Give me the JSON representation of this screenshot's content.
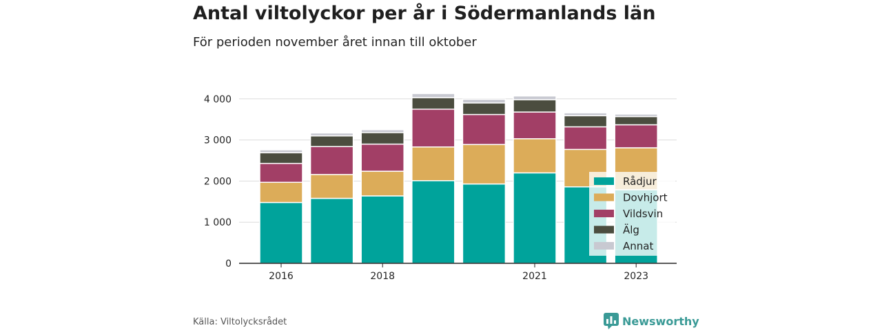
{
  "title": "Antal viltolyckor per år i Södermanlands län",
  "subtitle": "För perioden november året innan till oktober",
  "source": "Källa: Viltolycksrådet",
  "brand": {
    "name": "Newsworthy",
    "icon": "newsworthy-logo-icon",
    "color": "#3a9a96"
  },
  "chart_data": {
    "type": "bar",
    "stacked": true,
    "categories": [
      "2016",
      "2017",
      "2018",
      "2019",
      "2020",
      "2021",
      "2022",
      "2023"
    ],
    "x_tick_labels": [
      "2016",
      "",
      "2018",
      "",
      "",
      "2021",
      "",
      "2023"
    ],
    "series": [
      {
        "name": "Rådjur",
        "color": "#00a39b",
        "values": [
          1480,
          1580,
          1640,
          2010,
          1930,
          2200,
          1860,
          1790
        ]
      },
      {
        "name": "Dovhjort",
        "color": "#dcac59",
        "values": [
          490,
          580,
          600,
          820,
          960,
          830,
          910,
          1020
        ]
      },
      {
        "name": "Vildsvin",
        "color": "#a23f66",
        "values": [
          460,
          680,
          660,
          920,
          730,
          650,
          550,
          560
        ]
      },
      {
        "name": "Älg",
        "color": "#4b4d3f",
        "values": [
          260,
          260,
          280,
          280,
          280,
          300,
          270,
          200
        ]
      },
      {
        "name": "Annat",
        "color": "#c8c9d1",
        "values": [
          70,
          70,
          70,
          100,
          90,
          90,
          70,
          60
        ]
      }
    ],
    "y_ticks": [
      0,
      1000,
      2000,
      3000,
      4000
    ],
    "y_tick_labels": [
      "0",
      "1 000",
      "2 000",
      "3 000",
      "4 000"
    ],
    "ylim": [
      0,
      4300
    ],
    "grid": true,
    "legend_position": "bottom-right"
  }
}
